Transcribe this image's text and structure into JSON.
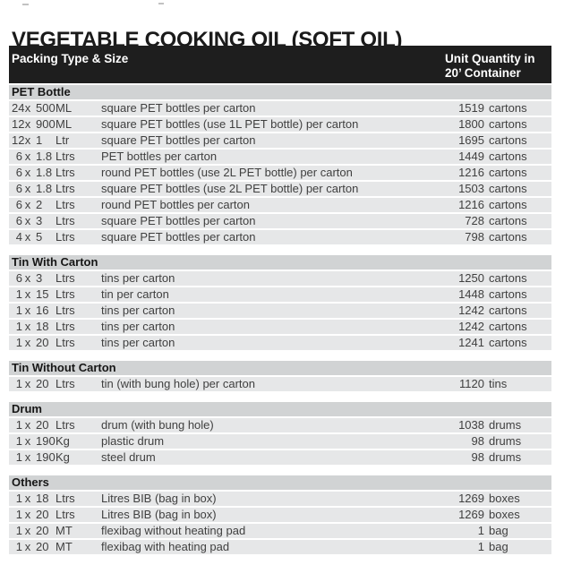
{
  "page": {
    "title": "VEGETABLE COOKING OIL (SOFT OIL)"
  },
  "colors": {
    "header_bar_bg": "#1e1e1e",
    "header_bar_text": "#ffffff",
    "section_header_bg": "#d1d3d4",
    "row_bg": "#e6e7e8",
    "body_text": "#404040",
    "title_text": "#1a1a1a"
  },
  "table": {
    "columns": {
      "packing": "Packing Type & Size",
      "quantity_line1": "Unit Quantity in",
      "quantity_line2": "20’ Container"
    },
    "multiply_sign": "x",
    "sections": [
      {
        "name": "PET Bottle",
        "rows": [
          {
            "pack": "24",
            "size": "500",
            "unit": "ML",
            "description": "square PET bottles per carton",
            "qty": "1519",
            "qty_unit": "cartons"
          },
          {
            "pack": "12",
            "size": "900",
            "unit": "ML",
            "description": "square PET bottles (use 1L PET bottle) per carton",
            "qty": "1800",
            "qty_unit": "cartons"
          },
          {
            "pack": "12",
            "size": "1",
            "unit": "Ltr",
            "description": "square PET bottles per carton",
            "qty": "1695",
            "qty_unit": "cartons"
          },
          {
            "pack": "6",
            "size": "1.8",
            "unit": "Ltrs",
            "description": "PET bottles per carton",
            "qty": "1449",
            "qty_unit": "cartons"
          },
          {
            "pack": "6",
            "size": "1.8",
            "unit": "Ltrs",
            "description": "round PET bottles (use 2L PET bottle) per carton",
            "qty": "1216",
            "qty_unit": "cartons"
          },
          {
            "pack": "6",
            "size": "1.8",
            "unit": "Ltrs",
            "description": "square PET bottles (use 2L PET bottle) per carton",
            "qty": "1503",
            "qty_unit": "cartons"
          },
          {
            "pack": "6",
            "size": "2",
            "unit": "Ltrs",
            "description": "round PET bottles per carton",
            "qty": "1216",
            "qty_unit": "cartons"
          },
          {
            "pack": "6",
            "size": "3",
            "unit": "Ltrs",
            "description": "square PET bottles per carton",
            "qty": "728",
            "qty_unit": "cartons"
          },
          {
            "pack": "4",
            "size": "5",
            "unit": "Ltrs",
            "description": "square PET bottles per carton",
            "qty": "798",
            "qty_unit": "cartons"
          }
        ]
      },
      {
        "name": "Tin With Carton",
        "rows": [
          {
            "pack": "6",
            "size": "3",
            "unit": "Ltrs",
            "description": "tins per carton",
            "qty": "1250",
            "qty_unit": "cartons"
          },
          {
            "pack": "1",
            "size": "15",
            "unit": "Ltrs",
            "description": "tin per carton",
            "qty": "1448",
            "qty_unit": "cartons"
          },
          {
            "pack": "1",
            "size": "16",
            "unit": "Ltrs",
            "description": "tins per carton",
            "qty": "1242",
            "qty_unit": "cartons"
          },
          {
            "pack": "1",
            "size": "18",
            "unit": "Ltrs",
            "description": "tins per carton",
            "qty": "1242",
            "qty_unit": "cartons"
          },
          {
            "pack": "1",
            "size": "20",
            "unit": "Ltrs",
            "description": "tins per carton",
            "qty": "1241",
            "qty_unit": "cartons"
          }
        ]
      },
      {
        "name": "Tin Without Carton",
        "rows": [
          {
            "pack": "1",
            "size": "20",
            "unit": "Ltrs",
            "description": "tin (with bung hole) per carton",
            "qty": "1120",
            "qty_unit": "tins"
          }
        ]
      },
      {
        "name": "Drum",
        "rows": [
          {
            "pack": "1",
            "size": "20",
            "unit": "Ltrs",
            "description": "drum (with bung hole)",
            "qty": "1038",
            "qty_unit": "drums"
          },
          {
            "pack": "1",
            "size": "190",
            "unit": "Kg",
            "description": "plastic drum",
            "qty": "98",
            "qty_unit": "drums"
          },
          {
            "pack": "1",
            "size": "190",
            "unit": "Kg",
            "description": "steel drum",
            "qty": "98",
            "qty_unit": "drums"
          }
        ]
      },
      {
        "name": "Others",
        "rows": [
          {
            "pack": "1",
            "size": "18",
            "unit": "Ltrs",
            "description": "Litres BIB (bag in box)",
            "qty": "1269",
            "qty_unit": "boxes"
          },
          {
            "pack": "1",
            "size": "20",
            "unit": "Ltrs",
            "description": "Litres BIB (bag in box)",
            "qty": "1269",
            "qty_unit": "boxes"
          },
          {
            "pack": "1",
            "size": "20",
            "unit": "MT",
            "description": "flexibag without heating pad",
            "qty": "1",
            "qty_unit": "bag"
          },
          {
            "pack": "1",
            "size": "20",
            "unit": "MT",
            "description": "flexibag with heating pad",
            "qty": "1",
            "qty_unit": "bag"
          }
        ]
      }
    ]
  }
}
